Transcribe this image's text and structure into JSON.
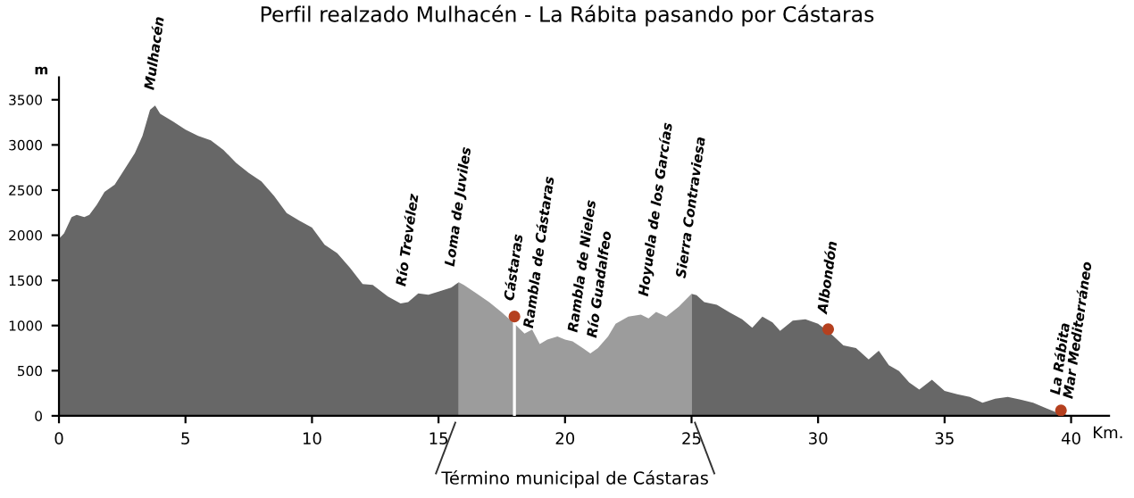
{
  "chart_data": {
    "type": "area",
    "title": "Perfil realzado Mulhacén - La Rábita pasando por Cástaras",
    "xlabel": "Km.",
    "ylabel": "m",
    "xlim": [
      0,
      41.5
    ],
    "xticks": [
      0,
      5,
      10,
      15,
      20,
      25,
      30,
      35,
      40
    ],
    "ylim": [
      0,
      3750
    ],
    "yticks": [
      0,
      500,
      1000,
      1500,
      2000,
      2500,
      3000,
      3500
    ],
    "grid": false,
    "legend": false,
    "series": [
      {
        "color": "#676767",
        "x": [
          0,
          0.2,
          0.5,
          0.7,
          1.0,
          1.2,
          1.5,
          1.8,
          2.2,
          2.5,
          3.0,
          3.3,
          3.6,
          3.8,
          4.0,
          4.5,
          5.0,
          5.5,
          6.0,
          6.5,
          7.0,
          7.5,
          8.0,
          8.5,
          9.0,
          9.5,
          10.0,
          10.5,
          11.0,
          11.5,
          12.0,
          12.4,
          12.7,
          13.0,
          13.5,
          13.8,
          14.2,
          14.6,
          15.0,
          15.5,
          15.8
        ],
        "values": [
          1960,
          2020,
          2200,
          2225,
          2200,
          2225,
          2340,
          2480,
          2560,
          2690,
          2910,
          3100,
          3390,
          3435,
          3345,
          3260,
          3170,
          3100,
          3050,
          2945,
          2800,
          2690,
          2595,
          2435,
          2245,
          2160,
          2085,
          1895,
          1800,
          1640,
          1460,
          1450,
          1385,
          1320,
          1245,
          1260,
          1355,
          1340,
          1375,
          1420,
          1480
        ]
      },
      {
        "color": "#9c9c9c",
        "x": [
          15.8,
          16.0,
          16.5,
          17.0,
          17.5,
          18.0,
          18.4,
          18.7,
          19.0,
          19.3,
          19.7,
          20.0,
          20.3,
          20.7,
          21.0,
          21.3,
          21.7,
          22.0,
          22.5,
          23.0,
          23.3,
          23.6,
          24.0,
          24.5,
          25.0
        ],
        "values": [
          1480,
          1450,
          1355,
          1260,
          1145,
          1020,
          910,
          955,
          795,
          845,
          880,
          845,
          825,
          750,
          690,
          750,
          880,
          1020,
          1100,
          1120,
          1080,
          1150,
          1100,
          1210,
          1350
        ]
      },
      {
        "color": "#676767",
        "x": [
          25.0,
          25.2,
          25.5,
          26.0,
          26.5,
          27.0,
          27.4,
          27.8,
          28.2,
          28.5,
          29.0,
          29.5,
          30.0,
          30.5,
          31.0,
          31.5,
          32.0,
          32.4,
          32.8,
          33.2,
          33.6,
          34.0,
          34.5,
          35.0,
          35.5,
          36.0,
          36.5,
          37.0,
          37.5,
          38.0,
          38.5,
          39.0,
          39.5,
          39.8
        ],
        "values": [
          1350,
          1335,
          1260,
          1230,
          1145,
          1070,
          975,
          1100,
          1035,
          940,
          1055,
          1070,
          1020,
          910,
          780,
          750,
          625,
          720,
          560,
          495,
          370,
          290,
          400,
          275,
          240,
          210,
          145,
          190,
          210,
          180,
          145,
          85,
          30,
          15
        ]
      },
      {
        "type": "scatter",
        "color": "#b5401f",
        "marker": "circle",
        "x": [
          18.0,
          30.4,
          39.6
        ],
        "values": [
          1100,
          960,
          60
        ]
      }
    ],
    "ref_lines": [
      {
        "axis": "x",
        "value": 18.0,
        "color": "#ffffff"
      }
    ],
    "annotations": [
      {
        "text": "Mulhacén",
        "x": 3.8,
        "y": 3435
      },
      {
        "text": "Río Trevélez",
        "x": 13.8,
        "y": 1260
      },
      {
        "text": "Loma de Juviles",
        "x": 15.8,
        "y": 1480
      },
      {
        "text": "Cástaras",
        "x": 18.0,
        "y": 1100
      },
      {
        "text": "Rambla de Cástaras",
        "x": 19.0,
        "y": 795
      },
      {
        "text": "Rambla de Nieles",
        "x": 20.7,
        "y": 750
      },
      {
        "text": "Río Guadalfeo",
        "x": 21.0,
        "y": 690
      },
      {
        "text": "Hoyuela de los Garcías",
        "x": 23.6,
        "y": 1150
      },
      {
        "text": "Sierra Contraviesa",
        "x": 25.0,
        "y": 1350
      },
      {
        "text": "Albondón",
        "x": 30.4,
        "y": 960
      },
      {
        "text": "La Rábita",
        "x": 39.6,
        "y": 60
      },
      {
        "text": "Mar Mediterráneo",
        "x": 39.8,
        "y": 15
      },
      "Término municipal de Cástaras"
    ]
  }
}
